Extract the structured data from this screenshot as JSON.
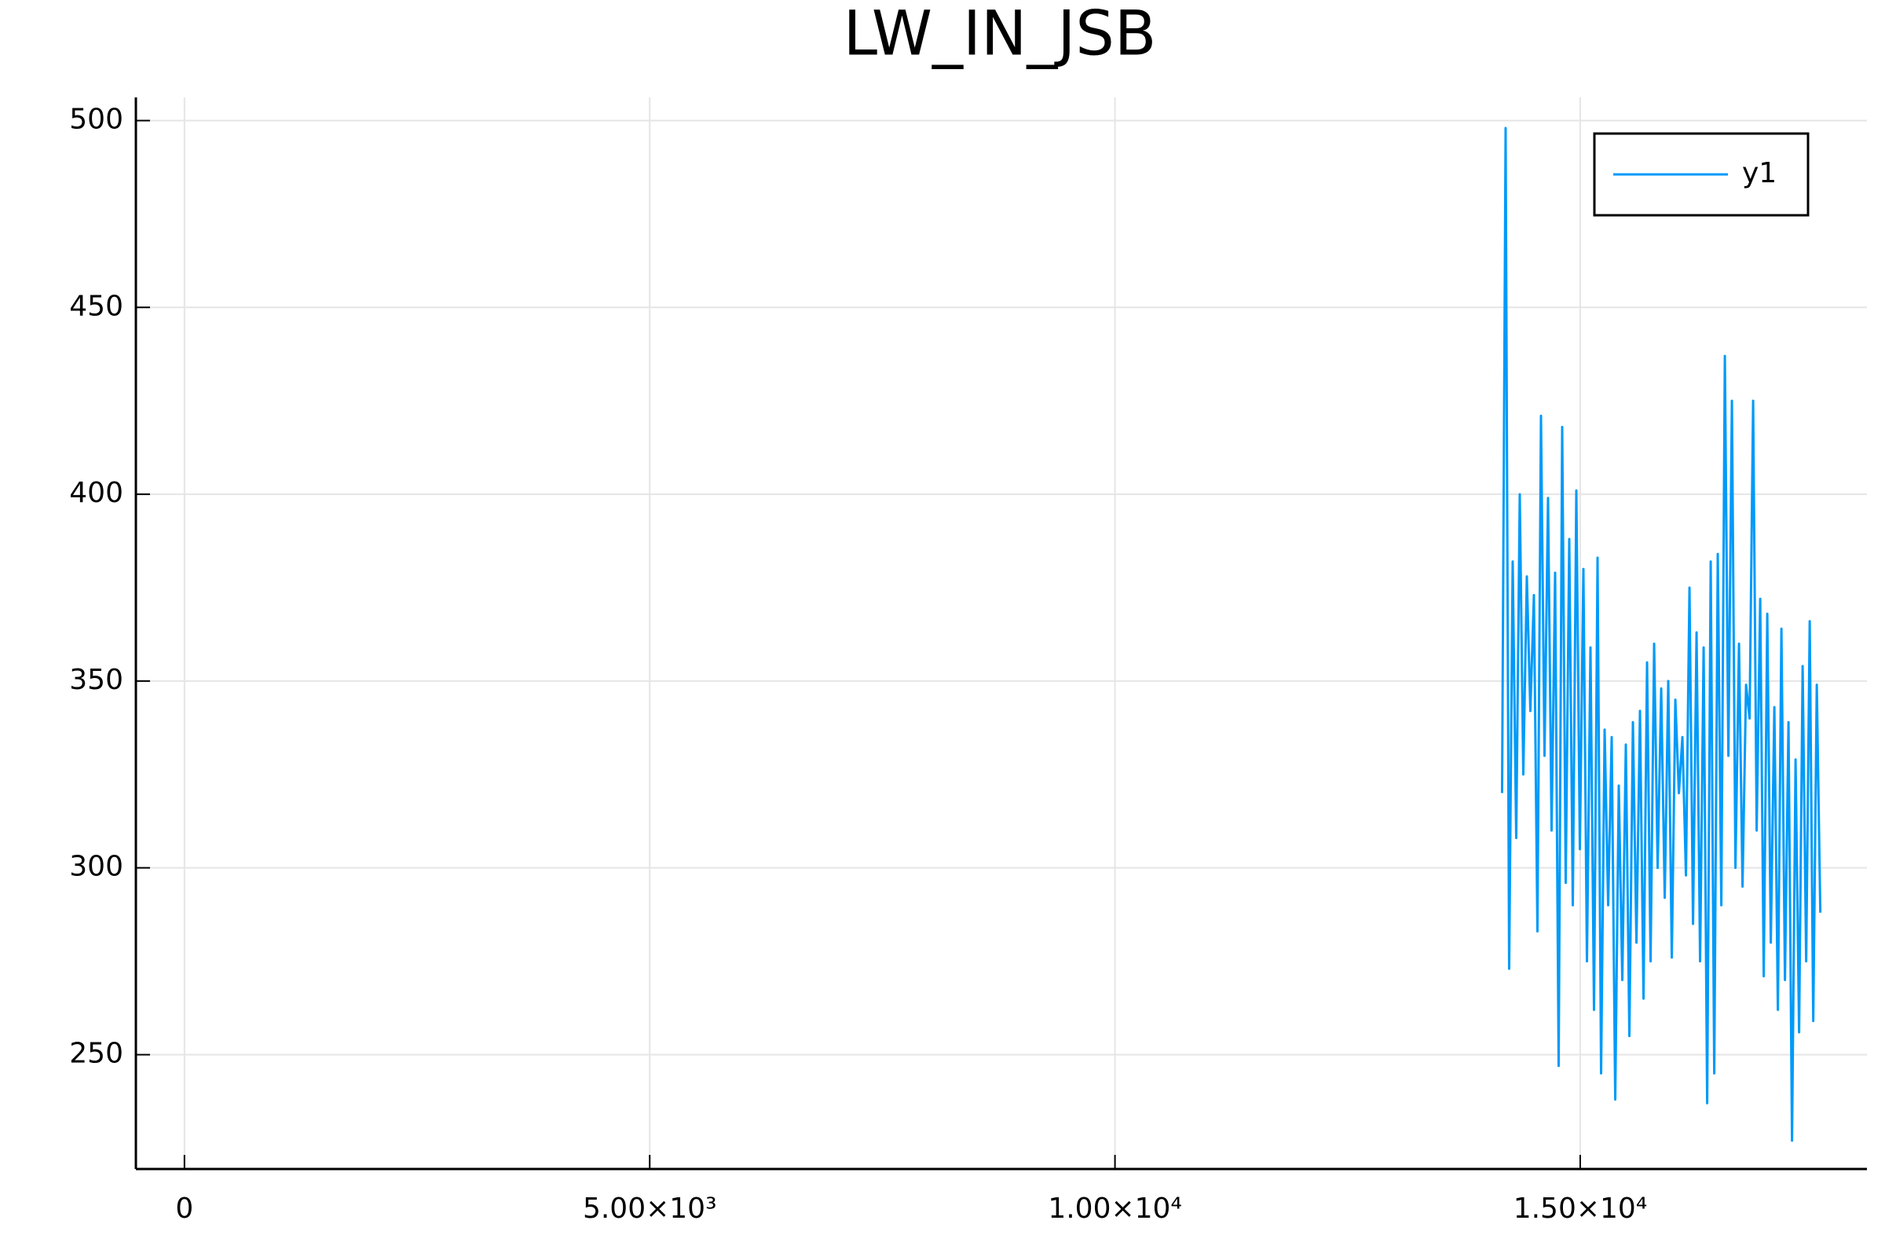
{
  "chart_data": {
    "type": "line",
    "title": "LW_IN_JSB",
    "x": [
      14160,
      14198,
      14236,
      14274,
      14312,
      14350,
      14388,
      14426,
      14464,
      14502,
      14540,
      14578,
      14616,
      14654,
      14692,
      14730,
      14768,
      14806,
      14844,
      14882,
      14920,
      14958,
      14996,
      15034,
      15072,
      15110,
      15148,
      15186,
      15224,
      15262,
      15300,
      15338,
      15376,
      15414,
      15452,
      15490,
      15528,
      15566,
      15604,
      15642,
      15680,
      15718,
      15756,
      15794,
      15832,
      15870,
      15908,
      15946,
      15984,
      16022,
      16060,
      16098,
      16136,
      16174,
      16212,
      16250,
      16288,
      16326,
      16364,
      16402,
      16440,
      16478,
      16516,
      16554,
      16592,
      16630,
      16668,
      16706,
      16744,
      16782,
      16820,
      16858,
      16896,
      16934,
      16972,
      17010,
      17048,
      17086,
      17124,
      17162,
      17200,
      17238,
      17276,
      17314,
      17352,
      17390,
      17428,
      17466,
      17504,
      17542,
      17580
    ],
    "series": [
      {
        "name": "y1",
        "color": "#009af9",
        "values": [
          320,
          498,
          273,
          382,
          308,
          400,
          325,
          378,
          342,
          373,
          283,
          421,
          330,
          399,
          310,
          379,
          247,
          418,
          296,
          388,
          290,
          401,
          305,
          380,
          275,
          359,
          262,
          383,
          245,
          337,
          290,
          335,
          238,
          322,
          270,
          333,
          255,
          339,
          280,
          342,
          265,
          355,
          275,
          360,
          300,
          348,
          292,
          350,
          276,
          345,
          320,
          335,
          298,
          375,
          285,
          363,
          275,
          359,
          237,
          382,
          245,
          384,
          290,
          437,
          330,
          425,
          300,
          360,
          295,
          349,
          340,
          425,
          310,
          372,
          271,
          368,
          280,
          343,
          262,
          364,
          270,
          339,
          227,
          329,
          256,
          354,
          275,
          366,
          259,
          349,
          288
        ]
      }
    ],
    "xlim": [
      -522,
      18081
    ],
    "ylim": [
      219.4,
      506.2
    ],
    "xticks": [
      0,
      {
        "value": 5000,
        "label": "5.00×10³"
      },
      {
        "value": 10000,
        "label": "1.00×10⁴"
      },
      {
        "value": 15000,
        "label": "1.50×10⁴"
      }
    ],
    "yticks": [
      250,
      300,
      350,
      400,
      450,
      500
    ],
    "grid": true,
    "legend": "top-right"
  }
}
